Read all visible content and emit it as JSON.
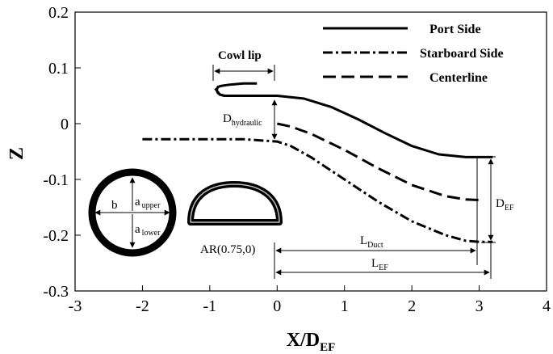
{
  "chart_data": {
    "type": "line",
    "xlabel": "X/D",
    "xlabel_sub": "EF",
    "ylabel": "Z",
    "xlim": [
      -3,
      4
    ],
    "ylim": [
      -0.3,
      0.2
    ],
    "xticks": [
      "-3",
      "-2",
      "-1",
      "0",
      "1",
      "2",
      "3",
      "4"
    ],
    "yticks": [
      "-0.3",
      "-0.2",
      "-0.1",
      "0",
      "0.1",
      "0.2"
    ],
    "grid": false,
    "legend_position": "top-right",
    "series": [
      {
        "name": "Port Side",
        "style": "solid",
        "x": [
          -0.92,
          -0.85,
          -0.78,
          -0.55,
          -0.3,
          0.0,
          0.4,
          0.8,
          1.2,
          1.6,
          2.0,
          2.4,
          2.8,
          3.0,
          3.2
        ],
        "y": [
          0.063,
          0.052,
          0.05,
          0.05,
          0.05,
          0.05,
          0.045,
          0.03,
          0.008,
          -0.017,
          -0.04,
          -0.055,
          -0.06,
          -0.06,
          -0.06
        ]
      },
      {
        "name": "Starboard Side",
        "style": "dash-dot",
        "x": [
          -2.0,
          -1.5,
          -1.0,
          -0.5,
          0.0,
          0.2,
          0.5,
          1.0,
          1.5,
          2.0,
          2.5,
          2.8,
          3.0,
          3.2
        ],
        "y": [
          -0.028,
          -0.028,
          -0.028,
          -0.028,
          -0.032,
          -0.04,
          -0.06,
          -0.1,
          -0.14,
          -0.175,
          -0.2,
          -0.21,
          -0.212,
          -0.212
        ]
      },
      {
        "name": "Centerline",
        "style": "dashed",
        "x": [
          0.0,
          0.2,
          0.5,
          1.0,
          1.5,
          2.0,
          2.5,
          2.8,
          3.0
        ],
        "y": [
          0.0,
          -0.005,
          -0.018,
          -0.047,
          -0.08,
          -0.11,
          -0.13,
          -0.136,
          -0.137
        ]
      }
    ],
    "cowl_lip": {
      "x": [
        -0.3,
        -0.5,
        -0.7,
        -0.82,
        -0.88,
        -0.9,
        -0.88,
        -0.85,
        -0.78
      ],
      "y": [
        0.072,
        0.072,
        0.07,
        0.068,
        0.066,
        0.06,
        0.055,
        0.052,
        0.05
      ]
    },
    "annotations": {
      "cowl_lip": "Cowl lip",
      "d_hydraulic": "D",
      "d_hydraulic_sub": "hydraulic",
      "d_ef": "D",
      "d_ef_sub": "EF",
      "l_duct": "L",
      "l_duct_sub": "Duct",
      "l_ef": "L",
      "l_ef_sub": "EF",
      "ar": "AR(0.75,0)",
      "b": "b",
      "a_upper": "a",
      "a_upper_sub": "upper",
      "a_lower": "a",
      "a_lower_sub": "lower"
    }
  }
}
